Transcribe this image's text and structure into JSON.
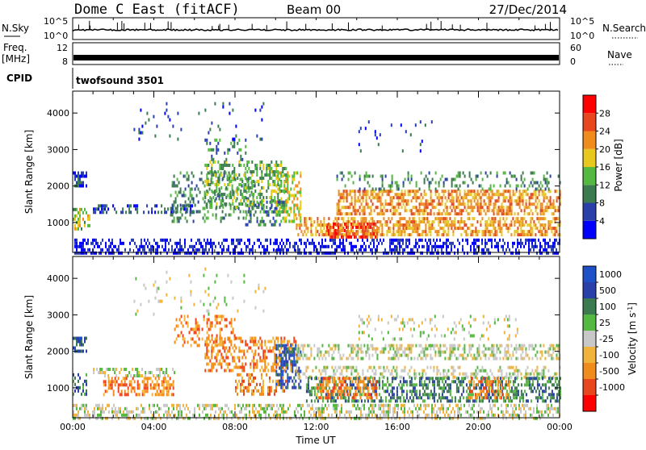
{
  "header": {
    "station": "Dome C East (fitACF)",
    "beam": "Beam 00",
    "date": "27/Dec/2014"
  },
  "nsky_panel": {
    "left_label": "N.Sky",
    "left_ticks": [
      "10^5",
      "10^0"
    ],
    "right_ticks": [
      "10^5",
      "10^0"
    ],
    "right_label": "N.Search"
  },
  "freq_panel": {
    "left_label_1": "Freq.",
    "left_label_2": "[MHz]",
    "left_ticks": [
      "12",
      "8"
    ],
    "right_ticks": [
      "60",
      "0"
    ],
    "right_label": "Nave"
  },
  "cpid_panel": {
    "left_label": "CPID",
    "program": "twofsound 3501"
  },
  "colors": {
    "power": [
      "#0000ff",
      "#2a3fa8",
      "#3c7a50",
      "#55b840",
      "#e8c81e",
      "#f08c1e",
      "#e8461e",
      "#ff0000"
    ],
    "velocity": [
      "#ff0000",
      "#e8461e",
      "#f08c1e",
      "#f0b43c",
      "#c8c8c8",
      "#55b840",
      "#3c7a50",
      "#2a3fa8",
      "#1e50c8"
    ]
  },
  "chart_data": [
    {
      "type": "heatmap",
      "title": "",
      "xlabel": "",
      "ylabel": "Slant Range [km]",
      "xlim": [
        0,
        24
      ],
      "ylim": [
        180,
        4600
      ],
      "x_tick_labels": [
        "00:00",
        "04:00",
        "08:00",
        "12:00",
        "16:00",
        "20:00",
        "00:00"
      ],
      "y_ticks": [
        1000,
        2000,
        3000,
        4000
      ],
      "colorbar": {
        "label": "Power [dB]",
        "ticks": [
          "28",
          "24",
          "20",
          "16",
          "12",
          "8",
          "4"
        ],
        "range": [
          0,
          32
        ]
      },
      "regions": [
        {
          "t0": 0.0,
          "t1": 24.0,
          "r0": 200,
          "r1": 560,
          "level": 3,
          "density": 0.45
        },
        {
          "t0": 0.0,
          "t1": 0.8,
          "r0": 800,
          "r1": 1400,
          "level": 16,
          "density": 0.5
        },
        {
          "t0": 0.0,
          "t1": 0.7,
          "r0": 2000,
          "r1": 2400,
          "level": 5,
          "density": 0.6
        },
        {
          "t0": 1.0,
          "t1": 6.0,
          "r0": 1300,
          "r1": 1500,
          "level": 6,
          "density": 0.35
        },
        {
          "t0": 4.8,
          "t1": 9.0,
          "r0": 1000,
          "r1": 2400,
          "level": 11,
          "density": 0.25
        },
        {
          "t0": 6.5,
          "t1": 10.5,
          "r0": 1400,
          "r1": 2700,
          "level": 13,
          "density": 0.4
        },
        {
          "t0": 8.5,
          "t1": 10.5,
          "r0": 900,
          "r1": 1600,
          "level": 9,
          "density": 0.35
        },
        {
          "t0": 10.0,
          "t1": 11.2,
          "r0": 1000,
          "r1": 2400,
          "level": 17,
          "density": 0.45
        },
        {
          "t0": 11.0,
          "t1": 24.0,
          "r0": 650,
          "r1": 1150,
          "level": 21,
          "density": 0.55
        },
        {
          "t0": 13.0,
          "t1": 24.0,
          "r0": 1200,
          "r1": 1900,
          "level": 22,
          "density": 0.55
        },
        {
          "t0": 12.5,
          "t1": 15.0,
          "r0": 600,
          "r1": 1000,
          "level": 26,
          "density": 0.6
        },
        {
          "t0": 13.0,
          "t1": 24.0,
          "r0": 1900,
          "r1": 2400,
          "level": 11,
          "density": 0.2
        },
        {
          "t0": 6.5,
          "t1": 8.5,
          "r0": 2700,
          "r1": 3300,
          "level": 9,
          "density": 0.2
        },
        {
          "t0": 3.0,
          "t1": 9.5,
          "r0": 3300,
          "r1": 4300,
          "level": 6,
          "density": 0.05
        },
        {
          "t0": 14.0,
          "t1": 18.0,
          "r0": 3000,
          "r1": 3800,
          "level": 6,
          "density": 0.05
        }
      ]
    },
    {
      "type": "heatmap",
      "title": "",
      "xlabel": "Time UT",
      "ylabel": "Slant Range [km]",
      "xlim": [
        0,
        24
      ],
      "ylim": [
        180,
        4600
      ],
      "x_tick_labels": [
        "00:00",
        "04:00",
        "08:00",
        "12:00",
        "16:00",
        "20:00",
        "00:00"
      ],
      "y_ticks": [
        1000,
        2000,
        3000,
        4000
      ],
      "colorbar": {
        "label": "Velocity [m s^-1]",
        "ticks": [
          "1000",
          "500",
          "100",
          "25",
          "-25",
          "-100",
          "-500",
          "-1000"
        ]
      },
      "regions": [
        {
          "t0": 0.0,
          "t1": 24.0,
          "r0": 200,
          "r1": 560,
          "level": 4,
          "density": 0.4
        },
        {
          "t0": 0.0,
          "t1": 0.7,
          "r0": 2000,
          "r1": 2400,
          "level": 7,
          "density": 0.6
        },
        {
          "t0": 0.0,
          "t1": 0.7,
          "r0": 800,
          "r1": 1400,
          "level": 6,
          "density": 0.5
        },
        {
          "t0": 1.0,
          "t1": 5.0,
          "r0": 1300,
          "r1": 1550,
          "level": 4,
          "density": 0.45
        },
        {
          "t0": 1.5,
          "t1": 5.0,
          "r0": 800,
          "r1": 1300,
          "level": 2,
          "density": 0.55
        },
        {
          "t0": 5.0,
          "t1": 8.0,
          "r0": 2200,
          "r1": 3000,
          "level": 2,
          "density": 0.3
        },
        {
          "t0": 6.5,
          "t1": 11.0,
          "r0": 1500,
          "r1": 2400,
          "level": 2,
          "density": 0.45
        },
        {
          "t0": 8.0,
          "t1": 10.5,
          "r0": 800,
          "r1": 1400,
          "level": 2,
          "density": 0.4
        },
        {
          "t0": 10.0,
          "t1": 11.2,
          "r0": 1000,
          "r1": 2200,
          "level": 7,
          "density": 0.45
        },
        {
          "t0": 11.0,
          "t1": 24.0,
          "r0": 1800,
          "r1": 2200,
          "level": 4,
          "density": 0.45
        },
        {
          "t0": 11.0,
          "t1": 24.0,
          "r0": 1300,
          "r1": 1600,
          "level": 4,
          "density": 0.35
        },
        {
          "t0": 11.5,
          "t1": 24.0,
          "r0": 600,
          "r1": 1300,
          "level": 6,
          "density": 0.5
        },
        {
          "t0": 12.0,
          "t1": 15.0,
          "r0": 700,
          "r1": 1300,
          "level": 2,
          "density": 0.5
        },
        {
          "t0": 19.5,
          "t1": 21.5,
          "r0": 700,
          "r1": 1300,
          "level": 2,
          "density": 0.45
        },
        {
          "t0": 14.0,
          "t1": 22.0,
          "r0": 2300,
          "r1": 3000,
          "level": 4,
          "density": 0.15
        },
        {
          "t0": 3.0,
          "t1": 9.5,
          "r0": 3000,
          "r1": 4300,
          "level": 4,
          "density": 0.05
        }
      ]
    }
  ],
  "time_axis": {
    "ticks": [
      "00:00",
      "04:00",
      "08:00",
      "12:00",
      "16:00",
      "20:00",
      "00:00"
    ],
    "label": "Time UT"
  }
}
